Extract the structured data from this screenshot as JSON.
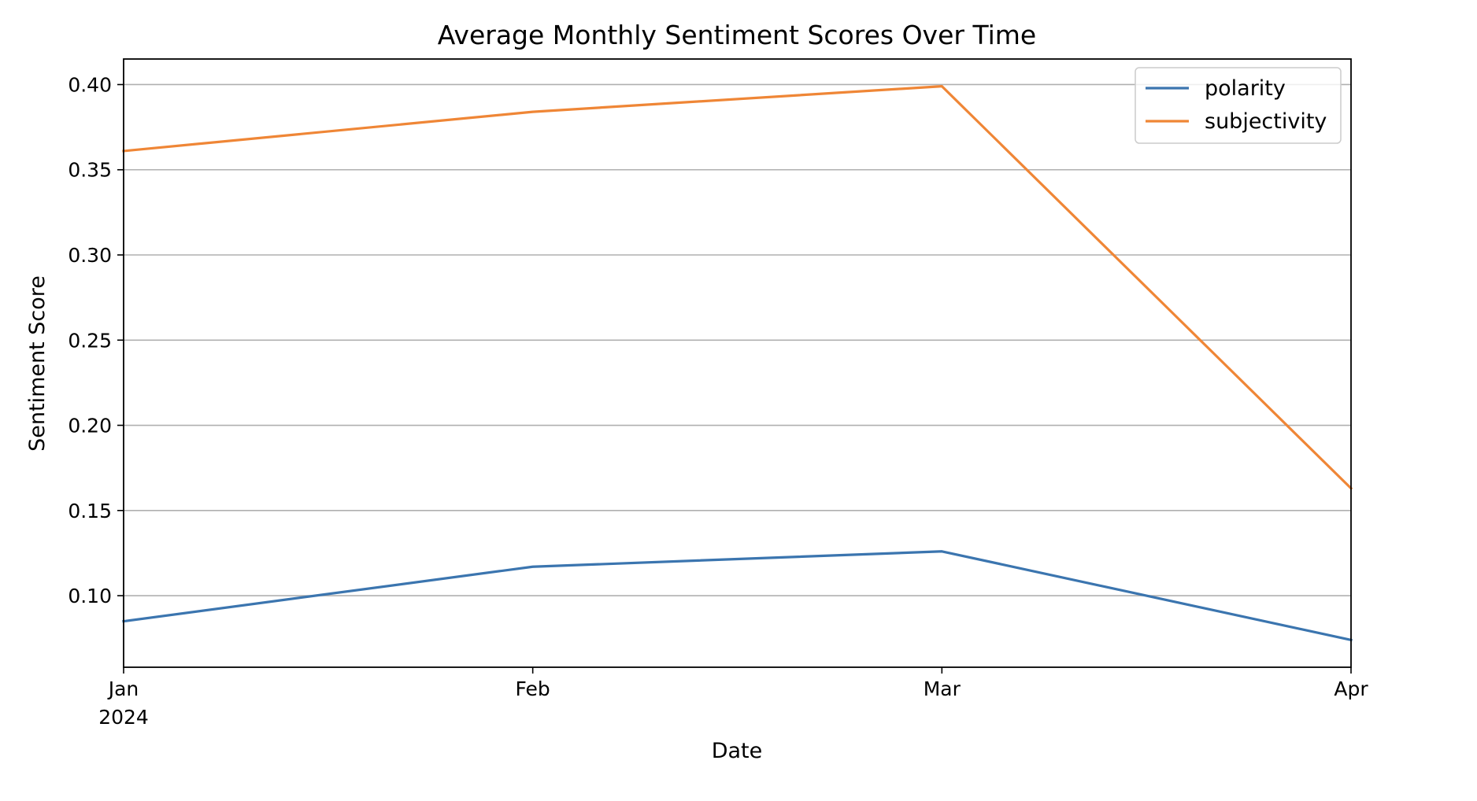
{
  "chart_data": {
    "type": "line",
    "title": "Average Monthly Sentiment Scores Over Time",
    "xlabel": "Date",
    "ylabel": "Sentiment Score",
    "x": [
      "2024-01",
      "2024-02",
      "2024-03",
      "2024-04"
    ],
    "x_tick_labels": [
      "Jan",
      "Feb",
      "Mar",
      "Apr"
    ],
    "x_tick_year": "2024",
    "ylim": [
      0.058,
      0.415
    ],
    "y_ticks": [
      0.1,
      0.15,
      0.2,
      0.25,
      0.3,
      0.35,
      0.4
    ],
    "y_tick_labels": [
      "0.10",
      "0.15",
      "0.20",
      "0.25",
      "0.30",
      "0.35",
      "0.40"
    ],
    "grid": "horizontal",
    "legend_position": "top-right",
    "series": [
      {
        "name": "polarity",
        "color": "#3b75af",
        "values": [
          0.085,
          0.117,
          0.126,
          0.074
        ]
      },
      {
        "name": "subjectivity",
        "color": "#ef8636",
        "values": [
          0.361,
          0.384,
          0.399,
          0.163
        ]
      }
    ]
  }
}
